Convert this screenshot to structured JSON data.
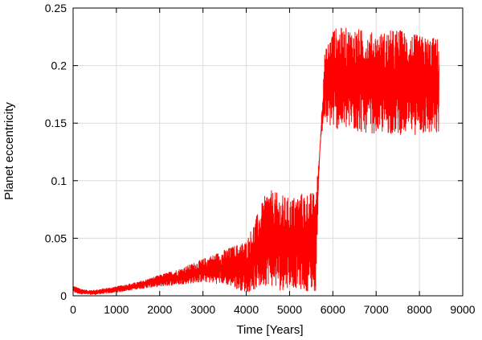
{
  "chart_data": {
    "type": "line",
    "title": "",
    "xlabel": "Time [Years]",
    "ylabel": "Planet eccentricity",
    "xlim": [
      0,
      9000
    ],
    "ylim": [
      0,
      0.25
    ],
    "x_ticks": [
      0,
      1000,
      2000,
      3000,
      4000,
      5000,
      6000,
      7000,
      8000,
      9000
    ],
    "x_tick_labels": [
      "0",
      "1000",
      "2000",
      "3000",
      "4000",
      "5000",
      "6000",
      "7000",
      "8000",
      "9000"
    ],
    "y_ticks": [
      0,
      0.05,
      0.1,
      0.15,
      0.2,
      0.25
    ],
    "y_tick_labels": [
      "0",
      "0.05",
      "0.1",
      "0.15",
      "0.2",
      "0.25"
    ],
    "grid": true,
    "legend": "none",
    "series": [
      {
        "color": "#ff0000",
        "x": [
          0,
          100,
          300,
          500,
          1000,
          1500,
          2000,
          2500,
          3000,
          3500,
          4000,
          4300,
          4500,
          4800,
          5000,
          5300,
          5600,
          5700,
          5800,
          6000,
          6500,
          7000,
          7500,
          8000,
          8450
        ],
        "y_min": [
          0.003,
          0.002,
          0.001,
          0.001,
          0.003,
          0.006,
          0.008,
          0.01,
          0.012,
          0.01,
          0.003,
          0.006,
          0.01,
          0.004,
          0.008,
          0.005,
          0.003,
          0.13,
          0.15,
          0.145,
          0.142,
          0.141,
          0.14,
          0.14,
          0.138
        ],
        "y_max": [
          0.009,
          0.007,
          0.005,
          0.005,
          0.008,
          0.012,
          0.018,
          0.024,
          0.032,
          0.04,
          0.048,
          0.075,
          0.093,
          0.088,
          0.085,
          0.09,
          0.09,
          0.125,
          0.21,
          0.233,
          0.233,
          0.228,
          0.232,
          0.226,
          0.224
        ]
      }
    ]
  }
}
